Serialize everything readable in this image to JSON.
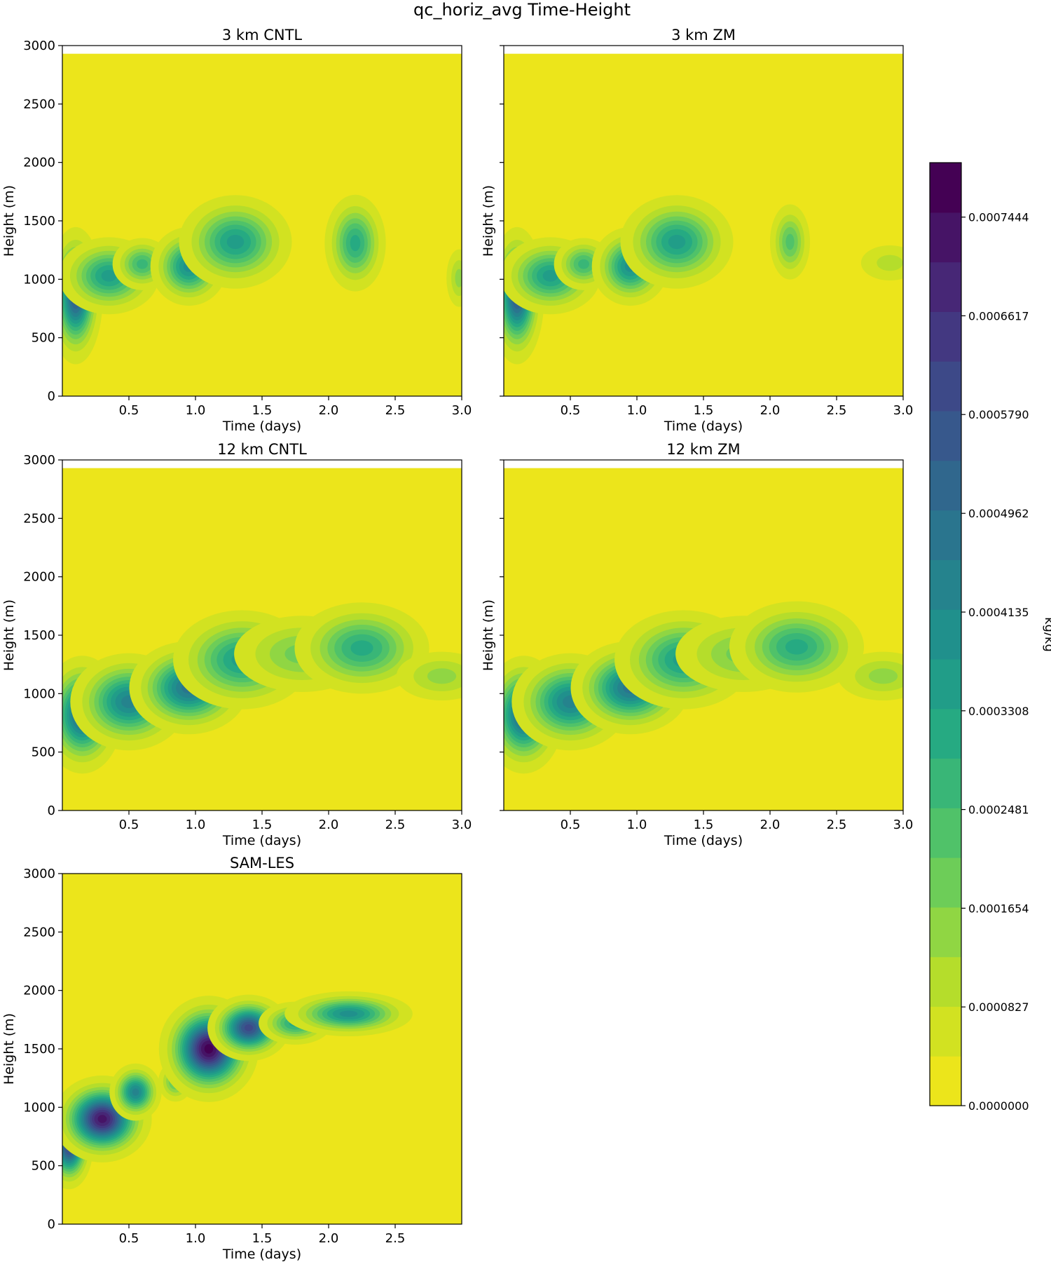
{
  "chart_data": {
    "type": "heatmap",
    "title": "qc_horiz_avg Time-Height",
    "xlabel": "Time (days)",
    "ylabel": "Height (m)",
    "x_ticks": [
      "0.5",
      "1.0",
      "1.5",
      "2.0",
      "2.5",
      "3.0"
    ],
    "x_ticks_sam": [
      "0.5",
      "1.0",
      "1.5",
      "2.0",
      "2.5"
    ],
    "y_ticks": [
      "0",
      "500",
      "1000",
      "1500",
      "2000",
      "2500",
      "3000"
    ],
    "xlim": [
      0,
      3.0
    ],
    "ylim": [
      0,
      3000
    ],
    "background_color": "#ece51b",
    "colormap": "viridis",
    "colorbar": {
      "label": "kg/kg",
      "min": 0.0,
      "max": 0.00079,
      "levels": 19,
      "tick_labels": [
        "0.0000000",
        "0.0000827",
        "0.0001654",
        "0.0002481",
        "0.0003308",
        "0.0004135",
        "0.0004962",
        "0.0005790",
        "0.0006617",
        "0.0007444"
      ]
    },
    "panels": [
      {
        "title": "3 km CNTL",
        "model_top": 2930,
        "blobs": [
          {
            "x": 0.1,
            "y": 860,
            "sx": 0.08,
            "sy": 230,
            "v": 0.00056
          },
          {
            "x": 0.35,
            "y": 1030,
            "sx": 0.16,
            "sy": 140,
            "v": 0.00036
          },
          {
            "x": 0.6,
            "y": 1130,
            "sx": 0.1,
            "sy": 100,
            "v": 0.00026
          },
          {
            "x": 0.95,
            "y": 1110,
            "sx": 0.12,
            "sy": 140,
            "v": 0.00039
          },
          {
            "x": 1.3,
            "y": 1320,
            "sx": 0.18,
            "sy": 170,
            "v": 0.00036
          },
          {
            "x": 2.2,
            "y": 1310,
            "sx": 0.1,
            "sy": 180,
            "v": 0.0003
          },
          {
            "x": 2.98,
            "y": 1010,
            "sx": 0.05,
            "sy": 130,
            "v": 0.00014
          }
        ]
      },
      {
        "title": "3 km ZM",
        "model_top": 2930,
        "blobs": [
          {
            "x": 0.1,
            "y": 860,
            "sx": 0.08,
            "sy": 230,
            "v": 0.00056
          },
          {
            "x": 0.35,
            "y": 1030,
            "sx": 0.16,
            "sy": 140,
            "v": 0.00036
          },
          {
            "x": 0.6,
            "y": 1130,
            "sx": 0.1,
            "sy": 100,
            "v": 0.00026
          },
          {
            "x": 0.95,
            "y": 1110,
            "sx": 0.12,
            "sy": 140,
            "v": 0.00039
          },
          {
            "x": 1.3,
            "y": 1320,
            "sx": 0.18,
            "sy": 170,
            "v": 0.00036
          },
          {
            "x": 2.15,
            "y": 1320,
            "sx": 0.07,
            "sy": 150,
            "v": 0.00022
          },
          {
            "x": 2.9,
            "y": 1140,
            "sx": 0.13,
            "sy": 90,
            "v": 0.0001
          }
        ]
      },
      {
        "title": "12 km CNTL",
        "model_top": 2930,
        "blobs": [
          {
            "x": 0.15,
            "y": 820,
            "sx": 0.12,
            "sy": 200,
            "v": 0.00052
          },
          {
            "x": 0.5,
            "y": 930,
            "sx": 0.18,
            "sy": 170,
            "v": 0.00044
          },
          {
            "x": 0.95,
            "y": 1050,
            "sx": 0.18,
            "sy": 160,
            "v": 0.00049
          },
          {
            "x": 1.35,
            "y": 1290,
            "sx": 0.22,
            "sy": 180,
            "v": 0.00037
          },
          {
            "x": 1.8,
            "y": 1340,
            "sx": 0.25,
            "sy": 160,
            "v": 0.00016
          },
          {
            "x": 2.25,
            "y": 1390,
            "sx": 0.22,
            "sy": 170,
            "v": 0.00032
          },
          {
            "x": 2.85,
            "y": 1150,
            "sx": 0.18,
            "sy": 110,
            "v": 0.00011
          }
        ]
      },
      {
        "title": "12 km ZM",
        "model_top": 2930,
        "blobs": [
          {
            "x": 0.15,
            "y": 820,
            "sx": 0.12,
            "sy": 200,
            "v": 0.00052
          },
          {
            "x": 0.5,
            "y": 930,
            "sx": 0.18,
            "sy": 170,
            "v": 0.00044
          },
          {
            "x": 0.95,
            "y": 1050,
            "sx": 0.18,
            "sy": 160,
            "v": 0.00049
          },
          {
            "x": 1.35,
            "y": 1290,
            "sx": 0.22,
            "sy": 180,
            "v": 0.00037
          },
          {
            "x": 1.8,
            "y": 1340,
            "sx": 0.25,
            "sy": 160,
            "v": 0.00016
          },
          {
            "x": 2.2,
            "y": 1400,
            "sx": 0.22,
            "sy": 170,
            "v": 0.00032
          },
          {
            "x": 2.85,
            "y": 1150,
            "sx": 0.18,
            "sy": 110,
            "v": 0.00011
          }
        ]
      },
      {
        "title": "SAM-LES",
        "model_top": 3000,
        "blobs": [
          {
            "x": 0.05,
            "y": 660,
            "sx": 0.07,
            "sy": 140,
            "v": 0.0006
          },
          {
            "x": 0.3,
            "y": 900,
            "sx": 0.14,
            "sy": 140,
            "v": 0.00075
          },
          {
            "x": 0.55,
            "y": 1130,
            "sx": 0.08,
            "sy": 100,
            "v": 0.00045
          },
          {
            "x": 0.85,
            "y": 1220,
            "sx": 0.06,
            "sy": 80,
            "v": 0.00022
          },
          {
            "x": 1.1,
            "y": 1500,
            "sx": 0.14,
            "sy": 170,
            "v": 0.00078
          },
          {
            "x": 1.4,
            "y": 1680,
            "sx": 0.12,
            "sy": 110,
            "v": 0.00062
          },
          {
            "x": 1.75,
            "y": 1720,
            "sx": 0.12,
            "sy": 80,
            "v": 0.00032
          },
          {
            "x": 2.15,
            "y": 1800,
            "sx": 0.2,
            "sy": 80,
            "v": 0.00038
          }
        ]
      }
    ]
  }
}
